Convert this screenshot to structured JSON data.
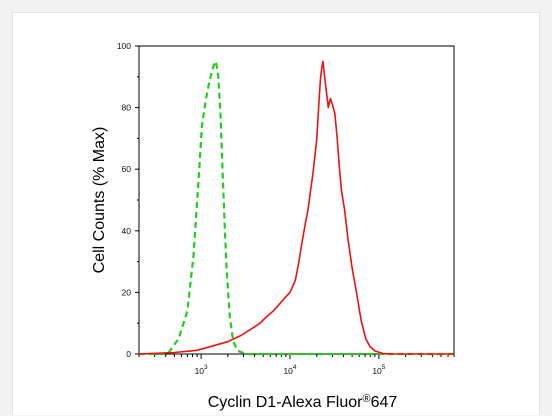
{
  "chart_data": {
    "type": "line",
    "title": "",
    "xlabel": "Cyclin D1-Alexa Fluor",
    "xlabel_mark": "®",
    "xlabel_suffix": "647",
    "ylabel": "Cell Counts (% Max)",
    "xscale": "log",
    "xlim": [
      200,
      700000
    ],
    "ylim": [
      0,
      100
    ],
    "grid": false,
    "legend": "none",
    "y_ticks": [
      0,
      20,
      40,
      60,
      80,
      100
    ],
    "y_tick_labels": [
      "0",
      "20",
      "40",
      "60",
      "80",
      "100"
    ],
    "x_major_ticks": [
      1000,
      10000,
      100000
    ],
    "x_tick_labels": [
      {
        "base": "10",
        "exp": "3"
      },
      {
        "base": "10",
        "exp": "4"
      },
      {
        "base": "10",
        "exp": "5"
      }
    ],
    "series": [
      {
        "color": "#22cc22",
        "dash": true,
        "x": [
          200,
          420,
          560,
          700,
          820,
          930,
          1020,
          1120,
          1230,
          1330,
          1400,
          1470,
          1560,
          1650,
          1740,
          1850,
          1950,
          2100,
          2300,
          2600,
          3200,
          700000
        ],
        "y": [
          0,
          0,
          5,
          14,
          32,
          55,
          74,
          82,
          88,
          92,
          94,
          95,
          90,
          78,
          60,
          40,
          26,
          12,
          4,
          1,
          0,
          0
        ]
      },
      {
        "color": "#ee1111",
        "dash": false,
        "x": [
          200,
          500,
          900,
          1300,
          2000,
          2800,
          3600,
          4600,
          5400,
          6500,
          7500,
          8600,
          10000,
          11500,
          12600,
          13800,
          15000,
          16000,
          17000,
          18000,
          19000,
          20000,
          21000,
          22000,
          22800,
          23500,
          24500,
          25500,
          27000,
          28500,
          30000,
          32000,
          34000,
          36000,
          38000,
          41000,
          45000,
          50000,
          56000,
          63000,
          71000,
          79000,
          90000,
          110000,
          140000,
          700000
        ],
        "y": [
          0,
          0.5,
          1.2,
          2.5,
          4,
          6,
          8,
          10,
          12,
          14,
          16,
          18,
          20,
          24,
          30,
          37,
          43,
          47,
          53,
          58,
          64,
          70,
          80,
          89,
          93,
          95,
          90,
          86,
          80,
          83,
          81,
          78,
          70,
          60,
          53,
          47,
          37,
          28,
          20,
          11,
          5,
          2.5,
          1,
          0.2,
          0,
          0
        ]
      }
    ]
  }
}
